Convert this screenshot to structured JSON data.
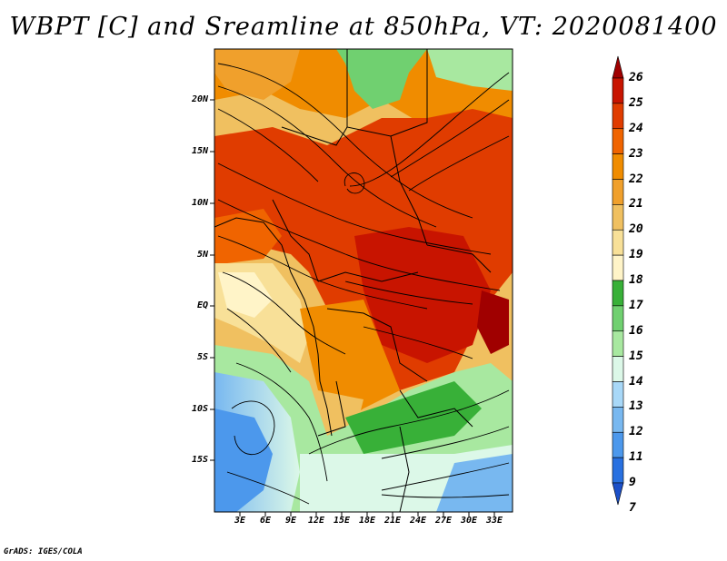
{
  "title": "WBPT [C] and Sreamline at 850hPa, VT: 2020081400",
  "credit": "GrADS: IGES/COLA",
  "map": {
    "variable": "WBPT [C]",
    "level": "850hPa",
    "valid_time": "2020081400",
    "lat_labels": [
      "20N",
      "15N",
      "10N",
      "5N",
      "EQ",
      "5S",
      "10S",
      "15S"
    ],
    "lon_labels": [
      "3E",
      "6E",
      "9E",
      "12E",
      "15E",
      "18E",
      "21E",
      "24E",
      "27E",
      "30E",
      "33E"
    ]
  },
  "colorbar": {
    "levels": [
      "26",
      "25",
      "24",
      "23",
      "22",
      "21",
      "20",
      "19",
      "18",
      "17",
      "16",
      "15",
      "14",
      "13",
      "12",
      "11",
      "9",
      "7"
    ],
    "colors": [
      "#a00000",
      "#c81400",
      "#e03c00",
      "#f06400",
      "#f08c00",
      "#f0a02c",
      "#f0c060",
      "#f8e098",
      "#fff4c8",
      "#38b038",
      "#70d070",
      "#a8e8a0",
      "#dcf8e8",
      "#a8d8f8",
      "#78b8f0",
      "#4c98ec",
      "#2870e0",
      "#1c50c8"
    ]
  }
}
